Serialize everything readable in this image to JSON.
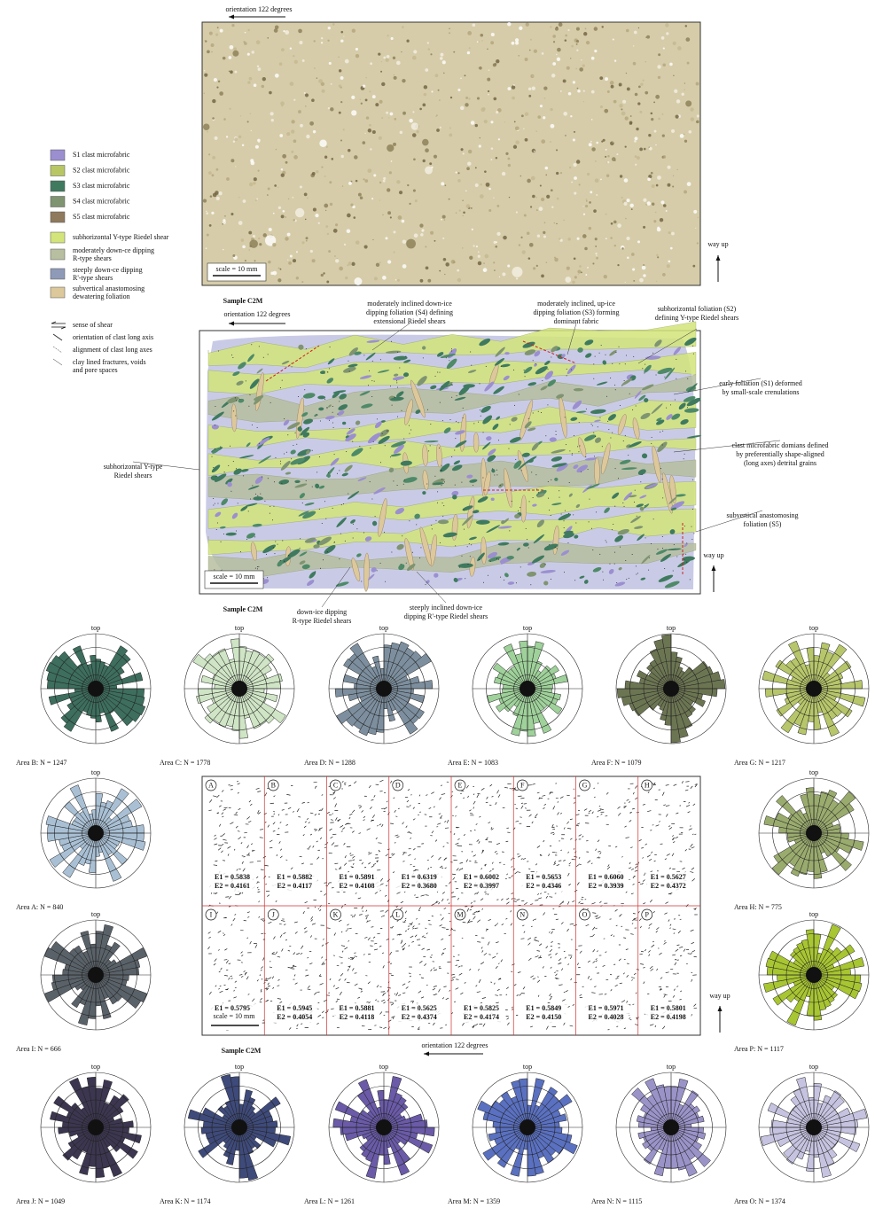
{
  "top_panel": {
    "orientation": "orientation 122 degrees",
    "scale": "scale = 10 mm",
    "way_up": "way up",
    "sample": "Sample C2M"
  },
  "legend": {
    "items": [
      {
        "lines": [
          "S1 clast microfabric"
        ],
        "color": "#9b8fd0"
      },
      {
        "lines": [
          "S2 clast microfabric"
        ],
        "color": "#b9c664"
      },
      {
        "lines": [
          "S3 clast microfabric"
        ],
        "color": "#3f7a5f"
      },
      {
        "lines": [
          "S4 clast microfabric"
        ],
        "color": "#7f9470"
      },
      {
        "lines": [
          "S5 clast microfabric"
        ],
        "color": "#8f7a5e"
      },
      {
        "lines": [
          "subhorizontal Y-type Riedel shear"
        ],
        "color": "#d3e57a"
      },
      {
        "lines": [
          "moderately down-ce dipping",
          "R-type shears"
        ],
        "color": "#b7bfa0"
      },
      {
        "lines": [
          "steeply down-ce dipping",
          "R'-type shears"
        ],
        "color": "#8f9ab8"
      },
      {
        "lines": [
          "subvertical anastomosing",
          "dewatering foliation"
        ],
        "color": "#dcc89a"
      }
    ],
    "symbols": [
      {
        "lines": [
          "sense of shear"
        ]
      },
      {
        "lines": [
          "orientation of clast long axis"
        ]
      },
      {
        "lines": [
          "alignment of clast long axes"
        ]
      },
      {
        "lines": [
          "clay lined fractures, voids",
          "and pore spaces"
        ]
      }
    ]
  },
  "interpreted_panel": {
    "orientation": "orientation 122 degrees",
    "scale": "scale = 10 mm",
    "way_up": "way up",
    "sample": "Sample C2M",
    "annotations": [
      {
        "lines": [
          "moderately inclined down-ice",
          "dipping foliation (S4) defining",
          "extensional Riedel shears"
        ]
      },
      {
        "lines": [
          "moderately inclined, up-ice",
          "dipping foliation (S3) forming",
          "dominant fabric"
        ]
      },
      {
        "lines": [
          "subhorizontal foliation (S2)",
          "defining Y-type Riedel shears"
        ]
      },
      {
        "lines": [
          "early foliation (S1) deformed",
          "by small-scale crenulations"
        ]
      },
      {
        "lines": [
          "clast microfabric domians defined",
          "by preferentially shape-aligned",
          "(long axes) detrital grains"
        ]
      },
      {
        "lines": [
          "subvertical anastomosing",
          "foliation (S5)"
        ]
      },
      {
        "lines": [
          "subhorizontal Y-type",
          "Riedel shears"
        ]
      },
      {
        "lines": [
          "down-ice dipping",
          "R-type Riedel shears"
        ]
      },
      {
        "lines": [
          "steeply inclined down-ice",
          "dipping R'-type Riedel shears"
        ]
      }
    ]
  },
  "roses": [
    {
      "label": "Area B: N = 1247",
      "top": "top",
      "color": "#3d6e5e"
    },
    {
      "label": "Area C: N = 1778",
      "top": "top",
      "color": "#cfe5c5"
    },
    {
      "label": "Area D: N = 1288",
      "top": "top",
      "color": "#7d8f9e"
    },
    {
      "label": "Area E: N = 1083",
      "top": "top",
      "color": "#9fd19a"
    },
    {
      "label": "Area F: N = 1079",
      "top": "top",
      "color": "#6c7552"
    },
    {
      "label": "Area G: N = 1217",
      "top": "top",
      "color": "#b7c66a"
    },
    {
      "label": "Area A: N = 840",
      "top": "top",
      "color": "#a9c0d4"
    },
    {
      "label": "Area H: N = 775",
      "top": "top",
      "color": "#9aab6e"
    },
    {
      "label": "Area I: N = 666",
      "top": "top",
      "color": "#5a6269"
    },
    {
      "label": "Area P: N = 1117",
      "top": "top",
      "color": "#a8c532"
    },
    {
      "label": "Area J: N = 1049",
      "top": "top",
      "color": "#3c3650"
    },
    {
      "label": "Area K: N = 1174",
      "top": "top",
      "color": "#3e4a7a"
    },
    {
      "label": "Area L: N = 1261",
      "top": "top",
      "color": "#6a5aa8"
    },
    {
      "label": "Area M: N = 1359",
      "top": "top",
      "color": "#5a70c0"
    },
    {
      "label": "Area N: N = 1115",
      "top": "top",
      "color": "#9a93c8"
    },
    {
      "label": "Area O: N = 1374",
      "top": "top",
      "color": "#c6c3e0"
    }
  ],
  "grid_panel": {
    "scale": "scale = 10 mm",
    "sample": "Sample C2M",
    "orientation": "orientation 122 degrees",
    "way_up": "way up",
    "cells": [
      {
        "letter": "A",
        "e1": "E1 = 0.5838",
        "e2": "E2 = 0.4161"
      },
      {
        "letter": "B",
        "e1": "E1 = 0.5882",
        "e2": "E2 = 0.4117"
      },
      {
        "letter": "C",
        "e1": "E1 = 0.5891",
        "e2": "E2 = 0.4108"
      },
      {
        "letter": "D",
        "e1": "E1 = 0.6319",
        "e2": "E2 = 0.3680"
      },
      {
        "letter": "E",
        "e1": "E1 = 0.6002",
        "e2": "E2 = 0.3997"
      },
      {
        "letter": "F",
        "e1": "E1 = 0.5653",
        "e2": "E2 = 0.4346"
      },
      {
        "letter": "G",
        "e1": "E1 = 0.6060",
        "e2": "E2 = 0.3939"
      },
      {
        "letter": "H",
        "e1": "E1 = 0.5627",
        "e2": "E2 = 0.4372"
      },
      {
        "letter": "I",
        "e1": "E1 = 0.5795",
        "e2": "E2 = 0.4204"
      },
      {
        "letter": "J",
        "e1": "E1 = 0.5945",
        "e2": "E2 = 0.4054"
      },
      {
        "letter": "K",
        "e1": "E1 = 0.5881",
        "e2": "E2 = 0.4118"
      },
      {
        "letter": "L",
        "e1": "E1 = 0.5625",
        "e2": "E2 = 0.4374"
      },
      {
        "letter": "M",
        "e1": "E1 = 0.5825",
        "e2": "E2 = 0.4174"
      },
      {
        "letter": "N",
        "e1": "E1 = 0.5849",
        "e2": "E2 = 0.4150"
      },
      {
        "letter": "O",
        "e1": "E1 = 0.5971",
        "e2": "E2 = 0.4028"
      },
      {
        "letter": "P",
        "e1": "E1 = 0.5801",
        "e2": "E2 = 0.4198"
      }
    ]
  }
}
